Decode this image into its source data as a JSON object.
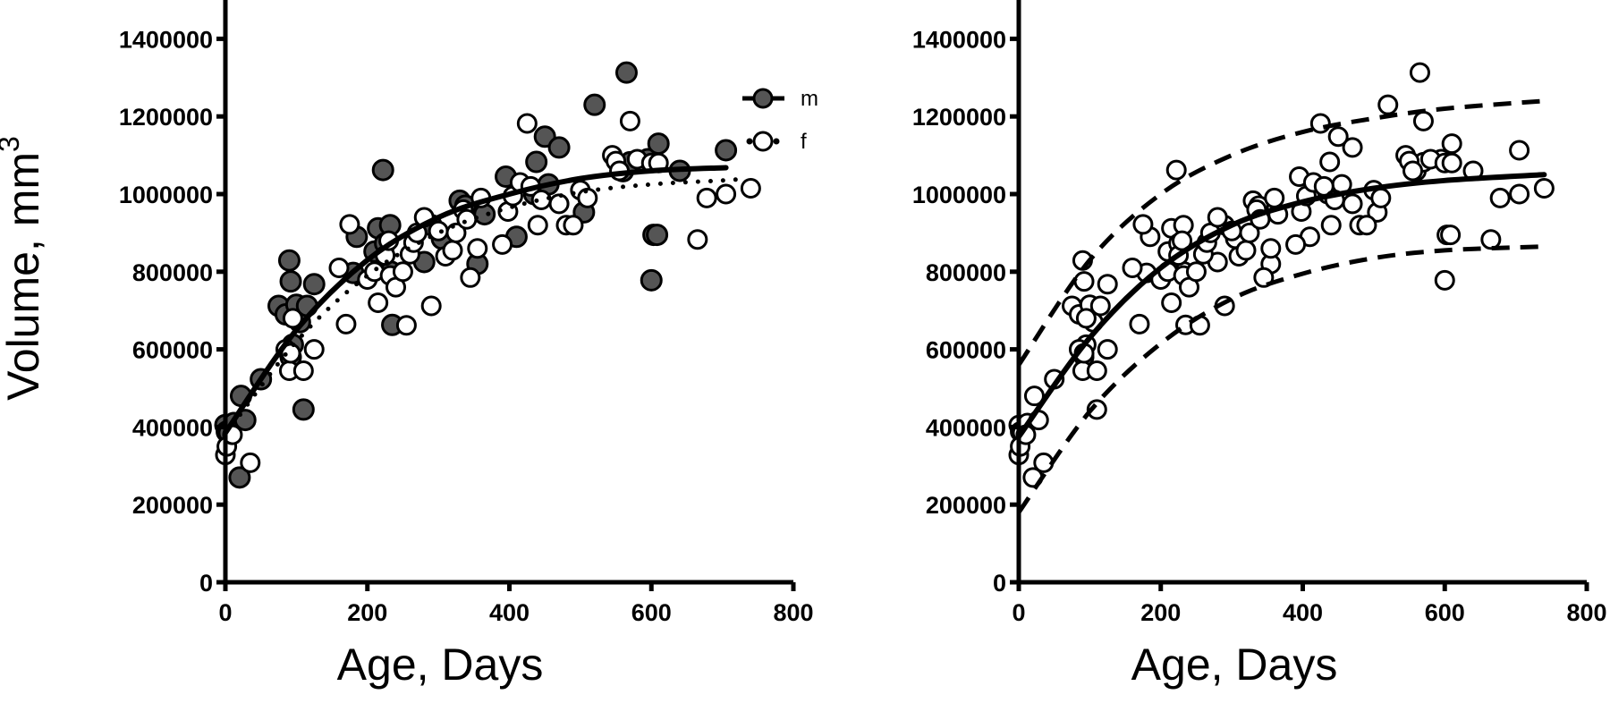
{
  "colors": {
    "male_fill": "#555555",
    "female_fill": "#ffffff",
    "stroke": "#000000"
  },
  "chart_data": [
    {
      "panel": "left",
      "type": "scatter",
      "title": "",
      "xlabel": "Age, Days",
      "ylabel": "Volume, mm",
      "ylabel_superscript": "3",
      "xlim": [
        0,
        800
      ],
      "ylim": [
        0,
        1500000
      ],
      "xticks": [
        0,
        200,
        400,
        600,
        800
      ],
      "yticks": [
        0,
        200000,
        400000,
        600000,
        800000,
        1000000,
        1200000,
        1400000
      ],
      "grid": false,
      "legend": {
        "placement": "top-right",
        "entries": [
          "m",
          "f"
        ]
      },
      "series": [
        {
          "name": "m",
          "marker": "filled-circle",
          "points": [
            [
              0,
              405000
            ],
            [
              2,
              388000
            ],
            [
              5,
              385000
            ],
            [
              12,
              410000
            ],
            [
              20,
              270000
            ],
            [
              22,
              480000
            ],
            [
              28,
              418000
            ],
            [
              50,
              523000
            ],
            [
              75,
              712000
            ],
            [
              85,
              690000
            ],
            [
              90,
              829000
            ],
            [
              92,
              775000
            ],
            [
              92,
              580000
            ],
            [
              95,
              612000
            ],
            [
              100,
              715000
            ],
            [
              105,
              670000
            ],
            [
              110,
              445000
            ],
            [
              115,
              712000
            ],
            [
              125,
              768000
            ],
            [
              180,
              797000
            ],
            [
              185,
              890000
            ],
            [
              210,
              852000
            ],
            [
              215,
              912000
            ],
            [
              222,
              1062000
            ],
            [
              225,
              873000
            ],
            [
              232,
              920000
            ],
            [
              233,
              800000
            ],
            [
              235,
              663000
            ],
            [
              238,
              785000
            ],
            [
              280,
              825000
            ],
            [
              290,
              920000
            ],
            [
              305,
              885000
            ],
            [
              330,
              983000
            ],
            [
              338,
              970000
            ],
            [
              355,
              820000
            ],
            [
              365,
              948000
            ],
            [
              395,
              1045000
            ],
            [
              410,
              890000
            ],
            [
              435,
              1000000
            ],
            [
              438,
              1083000
            ],
            [
              450,
              1148000
            ],
            [
              455,
              1025000
            ],
            [
              470,
              1120000
            ],
            [
              505,
              953000
            ],
            [
              520,
              1230000
            ],
            [
              560,
              1059000
            ],
            [
              565,
              1313000
            ],
            [
              570,
              1082000
            ],
            [
              595,
              1090000
            ],
            [
              600,
              778000
            ],
            [
              603,
              895000
            ],
            [
              608,
              895000
            ],
            [
              610,
              1130000
            ],
            [
              640,
              1060000
            ],
            [
              705,
              1113000
            ]
          ],
          "fit": {
            "style": "solid",
            "x": [
              0,
              100,
              200,
              300,
              400,
              500,
              600,
              705
            ],
            "y": [
              385000,
              650000,
              830000,
              940000,
              1000000,
              1040000,
              1060000,
              1068000
            ]
          }
        },
        {
          "name": "f",
          "marker": "open-circle",
          "points": [
            [
              0,
              328000
            ],
            [
              2,
              350000
            ],
            [
              10,
              380000
            ],
            [
              35,
              308000
            ],
            [
              85,
              600000
            ],
            [
              90,
              545000
            ],
            [
              92,
              590000
            ],
            [
              95,
              680000
            ],
            [
              110,
              545000
            ],
            [
              125,
              600000
            ],
            [
              160,
              810000
            ],
            [
              170,
              665000
            ],
            [
              175,
              922000
            ],
            [
              200,
              780000
            ],
            [
              210,
              800000
            ],
            [
              215,
              720000
            ],
            [
              225,
              842000
            ],
            [
              230,
              880000
            ],
            [
              232,
              790000
            ],
            [
              240,
              760000
            ],
            [
              250,
              800000
            ],
            [
              255,
              662000
            ],
            [
              260,
              845000
            ],
            [
              265,
              875000
            ],
            [
              270,
              900000
            ],
            [
              280,
              940000
            ],
            [
              290,
              712000
            ],
            [
              300,
              905000
            ],
            [
              310,
              840000
            ],
            [
              320,
              855000
            ],
            [
              325,
              900000
            ],
            [
              335,
              960000
            ],
            [
              340,
              935000
            ],
            [
              345,
              785000
            ],
            [
              355,
              860000
            ],
            [
              360,
              990000
            ],
            [
              390,
              870000
            ],
            [
              398,
              955000
            ],
            [
              405,
              995000
            ],
            [
              415,
              1030000
            ],
            [
              425,
              1182000
            ],
            [
              430,
              1020000
            ],
            [
              440,
              920000
            ],
            [
              445,
              985000
            ],
            [
              470,
              975000
            ],
            [
              480,
              920000
            ],
            [
              490,
              920000
            ],
            [
              500,
              1010000
            ],
            [
              510,
              990000
            ],
            [
              545,
              1100000
            ],
            [
              550,
              1085000
            ],
            [
              555,
              1060000
            ],
            [
              570,
              1188000
            ],
            [
              580,
              1090000
            ],
            [
              600,
              1080000
            ],
            [
              610,
              1080000
            ],
            [
              665,
              883000
            ],
            [
              678,
              990000
            ],
            [
              705,
              1000000
            ],
            [
              740,
              1015000
            ]
          ],
          "fit": {
            "style": "dotted",
            "x": [
              0,
              100,
              200,
              300,
              400,
              500,
              600,
              700,
              735
            ],
            "y": [
              380000,
              620000,
              790000,
              900000,
              965000,
              1005000,
              1025000,
              1035000,
              1040000
            ]
          }
        }
      ]
    },
    {
      "panel": "right",
      "type": "scatter",
      "title": "",
      "xlabel": "Age, Days",
      "ylabel": "",
      "xlim": [
        0,
        800
      ],
      "ylim": [
        0,
        1500000
      ],
      "xticks": [
        0,
        200,
        400,
        600,
        800
      ],
      "yticks": [
        0,
        200000,
        400000,
        600000,
        800000,
        1000000,
        1200000,
        1400000
      ],
      "grid": false,
      "series": [
        {
          "name": "",
          "marker": "open-circle",
          "points": [
            [
              0,
              405000
            ],
            [
              2,
              388000
            ],
            [
              5,
              385000
            ],
            [
              12,
              410000
            ],
            [
              20,
              270000
            ],
            [
              22,
              480000
            ],
            [
              28,
              418000
            ],
            [
              50,
              523000
            ],
            [
              75,
              712000
            ],
            [
              85,
              690000
            ],
            [
              90,
              829000
            ],
            [
              92,
              775000
            ],
            [
              92,
              580000
            ],
            [
              95,
              612000
            ],
            [
              100,
              715000
            ],
            [
              105,
              670000
            ],
            [
              110,
              445000
            ],
            [
              115,
              712000
            ],
            [
              125,
              768000
            ],
            [
              180,
              797000
            ],
            [
              185,
              890000
            ],
            [
              210,
              852000
            ],
            [
              215,
              912000
            ],
            [
              222,
              1062000
            ],
            [
              225,
              873000
            ],
            [
              232,
              920000
            ],
            [
              233,
              800000
            ],
            [
              235,
              663000
            ],
            [
              238,
              785000
            ],
            [
              280,
              825000
            ],
            [
              290,
              920000
            ],
            [
              305,
              885000
            ],
            [
              330,
              983000
            ],
            [
              338,
              970000
            ],
            [
              355,
              820000
            ],
            [
              365,
              948000
            ],
            [
              395,
              1045000
            ],
            [
              410,
              890000
            ],
            [
              435,
              1000000
            ],
            [
              438,
              1083000
            ],
            [
              450,
              1148000
            ],
            [
              455,
              1025000
            ],
            [
              470,
              1120000
            ],
            [
              505,
              953000
            ],
            [
              520,
              1230000
            ],
            [
              560,
              1059000
            ],
            [
              565,
              1313000
            ],
            [
              570,
              1082000
            ],
            [
              595,
              1090000
            ],
            [
              600,
              778000
            ],
            [
              603,
              895000
            ],
            [
              608,
              895000
            ],
            [
              610,
              1130000
            ],
            [
              640,
              1060000
            ],
            [
              705,
              1113000
            ],
            [
              0,
              328000
            ],
            [
              2,
              350000
            ],
            [
              10,
              380000
            ],
            [
              35,
              308000
            ],
            [
              85,
              600000
            ],
            [
              90,
              545000
            ],
            [
              92,
              590000
            ],
            [
              95,
              680000
            ],
            [
              110,
              545000
            ],
            [
              125,
              600000
            ],
            [
              160,
              810000
            ],
            [
              170,
              665000
            ],
            [
              175,
              922000
            ],
            [
              200,
              780000
            ],
            [
              210,
              800000
            ],
            [
              215,
              720000
            ],
            [
              225,
              842000
            ],
            [
              230,
              880000
            ],
            [
              232,
              790000
            ],
            [
              240,
              760000
            ],
            [
              250,
              800000
            ],
            [
              255,
              662000
            ],
            [
              260,
              845000
            ],
            [
              265,
              875000
            ],
            [
              270,
              900000
            ],
            [
              280,
              940000
            ],
            [
              290,
              712000
            ],
            [
              300,
              905000
            ],
            [
              310,
              840000
            ],
            [
              320,
              855000
            ],
            [
              325,
              900000
            ],
            [
              335,
              960000
            ],
            [
              340,
              935000
            ],
            [
              345,
              785000
            ],
            [
              355,
              860000
            ],
            [
              360,
              990000
            ],
            [
              390,
              870000
            ],
            [
              398,
              955000
            ],
            [
              405,
              995000
            ],
            [
              415,
              1030000
            ],
            [
              425,
              1182000
            ],
            [
              430,
              1020000
            ],
            [
              440,
              920000
            ],
            [
              445,
              985000
            ],
            [
              470,
              975000
            ],
            [
              480,
              920000
            ],
            [
              490,
              920000
            ],
            [
              500,
              1010000
            ],
            [
              510,
              990000
            ],
            [
              545,
              1100000
            ],
            [
              550,
              1085000
            ],
            [
              555,
              1060000
            ],
            [
              570,
              1188000
            ],
            [
              580,
              1090000
            ],
            [
              600,
              1080000
            ],
            [
              610,
              1080000
            ],
            [
              665,
              883000
            ],
            [
              678,
              990000
            ],
            [
              705,
              1000000
            ],
            [
              740,
              1015000
            ]
          ]
        }
      ],
      "curves": [
        {
          "style": "solid",
          "x": [
            0,
            100,
            200,
            300,
            400,
            500,
            600,
            740
          ],
          "y": [
            375000,
            630000,
            810000,
            920000,
            980000,
            1015000,
            1035000,
            1050000
          ]
        },
        {
          "style": "dashed",
          "x": [
            0,
            100,
            200,
            300,
            400,
            500,
            600,
            740
          ],
          "y": [
            560000,
            830000,
            1000000,
            1100000,
            1160000,
            1195000,
            1220000,
            1240000
          ]
        },
        {
          "style": "dashed",
          "x": [
            0,
            100,
            200,
            300,
            400,
            500,
            600,
            740
          ],
          "y": [
            180000,
            440000,
            615000,
            730000,
            795000,
            835000,
            855000,
            865000
          ]
        }
      ]
    }
  ]
}
